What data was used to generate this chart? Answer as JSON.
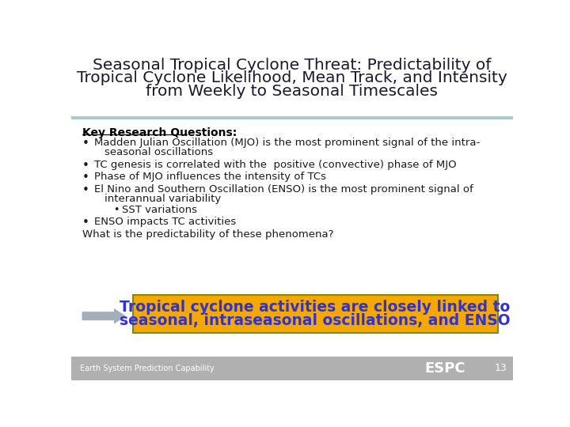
{
  "title_line1": "Seasonal Tropical Cyclone Threat: Predictability of",
  "title_line2": "Tropical Cyclone Likelihood, Mean Track, and Intensity",
  "title_line3": "from Weekly to Seasonal Timescales",
  "title_color": "#1a1a2e",
  "slide_bg": "#ffffff",
  "header_bar_color": "#aac8d0",
  "footer_bg": "#b0b0b0",
  "footer_text": "Earth System Prediction Capability",
  "footer_espc": "ESPC",
  "footer_num": "13",
  "key_research_label": "Key Research Questions:",
  "bullet1a": "Madden Julian Oscillation (MJO) is the most prominent signal of the intra-",
  "bullet1b": "seasonal oscillations",
  "bullet2": "TC genesis is correlated with the  positive (convective) phase of MJO",
  "bullet3": "Phase of MJO influences the intensity of TCs",
  "bullet4a": "El Nino and Southern Oscillation (ENSO) is the most prominent signal of",
  "bullet4b": "interannual variability",
  "sub_bullet": "SST variations",
  "bullet5": "ENSO impacts TC activities",
  "question_text": "What is the predictability of these phenomena?",
  "callout_bg": "#f5a800",
  "callout_border": "#888800",
  "callout_text_color": "#3333cc",
  "callout_line1": "Tropical cyclone activities are closely linked to",
  "callout_line2": "seasonal, intraseasonal oscillations, and ENSO",
  "arrow_color": "#8a9daa"
}
